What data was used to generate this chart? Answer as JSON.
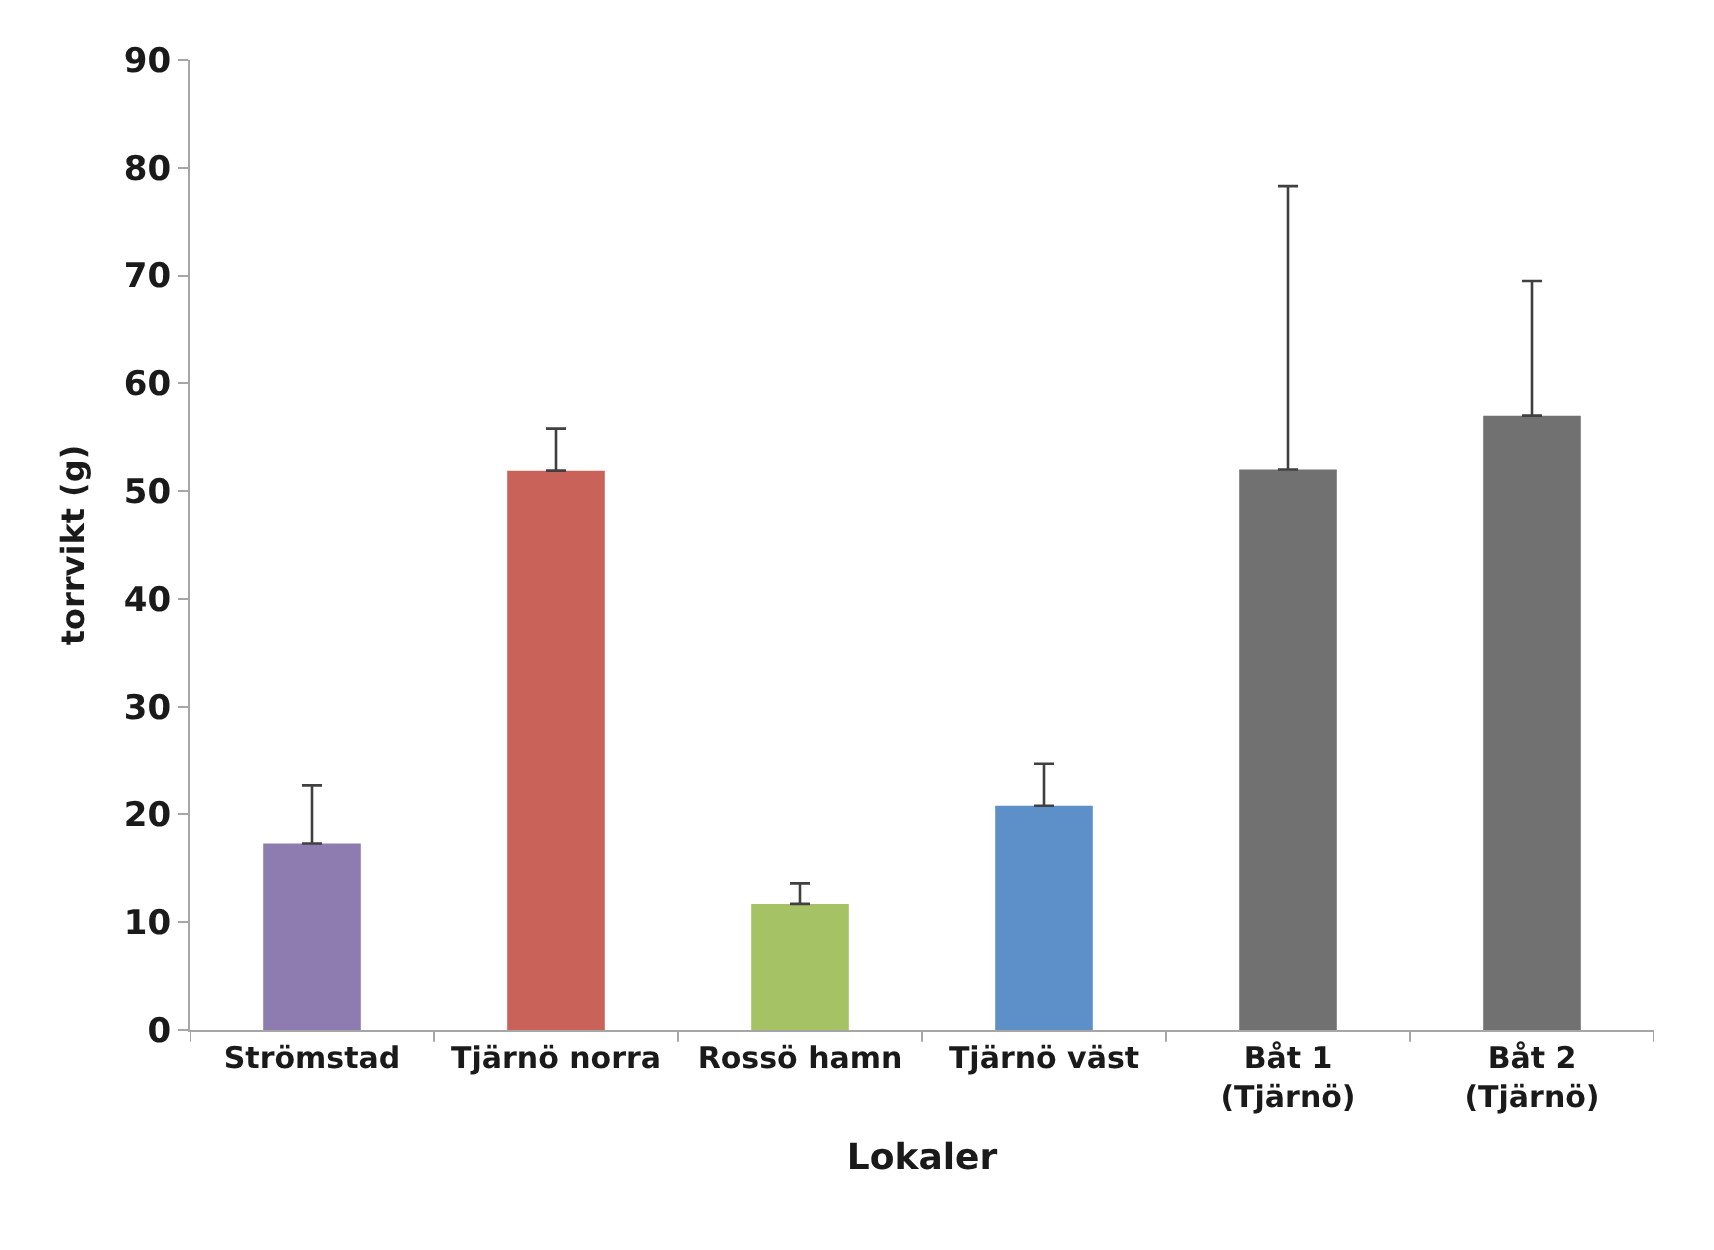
{
  "chart_data": {
    "type": "bar",
    "xlabel": "Lokaler",
    "ylabel": "torrvikt (g)",
    "categories": [
      "Strömstad",
      "Tjärnö norra",
      "Rossö hamn",
      "Tjärnö väst",
      "Båt 1\n(Tjärnö)",
      "Båt 2\n(Tjärnö)"
    ],
    "values": [
      17.3,
      51.9,
      11.7,
      20.8,
      52.0,
      57.0
    ],
    "colors": [
      "#8e7cb0",
      "#c9635a",
      "#a5c264",
      "#5d8fc8",
      "#717171",
      "#717171"
    ],
    "errors": [
      [
        17.3,
        22.7
      ],
      [
        51.9,
        55.8
      ],
      [
        11.7,
        13.6
      ],
      [
        20.8,
        24.7
      ],
      [
        52.0,
        78.3
      ],
      [
        57.0,
        69.5
      ]
    ],
    "ylim": [
      0,
      90
    ],
    "yticks": [
      0,
      10,
      20,
      30,
      40,
      50,
      60,
      70,
      80,
      90
    ],
    "grid": false,
    "legend": false
  }
}
